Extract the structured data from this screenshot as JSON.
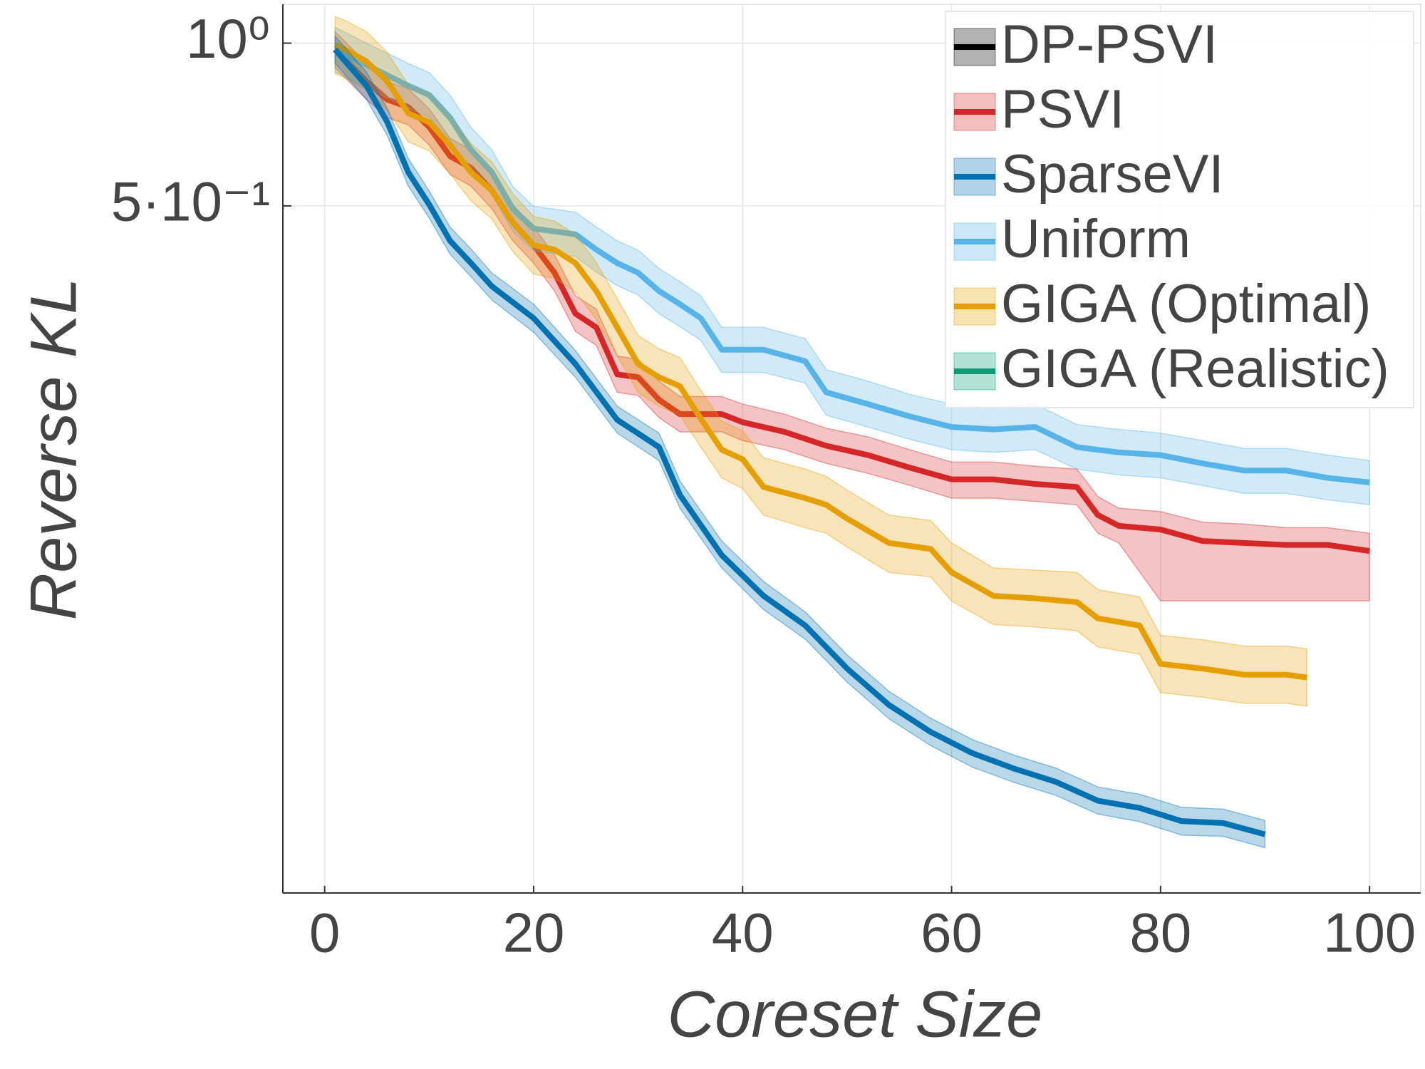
{
  "chart_data": {
    "type": "line",
    "xlabel": "Coreset Size",
    "ylabel": "Reverse KL",
    "log_y": true,
    "grid": true,
    "legend": "upper right",
    "xlim": [
      -4,
      104.9
    ],
    "xticks": [
      0,
      20,
      40,
      60,
      80,
      100
    ],
    "ylim": [
      0.0268,
      1.18
    ],
    "yticks": [
      {
        "value": 0.5,
        "label": "5·10⁻¹"
      },
      {
        "value": 1,
        "label": "10⁰"
      }
    ],
    "series": [
      {
        "name": "DP-PSVI",
        "color": "#000000"
      },
      {
        "name": "PSVI",
        "color": "#d62728",
        "x": [
          1,
          4,
          6,
          8,
          10,
          12,
          14,
          16,
          18,
          20,
          22,
          24,
          26,
          28,
          30,
          32,
          34,
          36,
          38,
          40,
          44,
          48,
          52,
          56,
          60,
          64,
          68,
          72,
          74,
          76,
          80,
          84,
          88,
          92,
          96,
          100
        ],
        "values": [
          0.973,
          0.85,
          0.786,
          0.762,
          0.7,
          0.618,
          0.588,
          0.534,
          0.466,
          0.423,
          0.376,
          0.316,
          0.298,
          0.244,
          0.241,
          0.219,
          0.206,
          0.206,
          0.206,
          0.199,
          0.191,
          0.18,
          0.173,
          0.164,
          0.156,
          0.156,
          0.153,
          0.151,
          0.134,
          0.128,
          0.126,
          0.12,
          0.119,
          0.118,
          0.118,
          0.115
        ],
        "lower": [
          0.901,
          0.787,
          0.728,
          0.706,
          0.648,
          0.572,
          0.544,
          0.494,
          0.431,
          0.392,
          0.348,
          0.293,
          0.276,
          0.226,
          0.223,
          0.203,
          0.191,
          0.191,
          0.191,
          0.184,
          0.177,
          0.167,
          0.16,
          0.152,
          0.144,
          0.144,
          0.142,
          0.14,
          0.124,
          0.119,
          0.093,
          0.093,
          0.093,
          0.093,
          0.093,
          0.093
        ],
        "upper": [
          1.05,
          0.918,
          0.849,
          0.823,
          0.756,
          0.667,
          0.635,
          0.577,
          0.503,
          0.457,
          0.406,
          0.341,
          0.322,
          0.264,
          0.26,
          0.237,
          0.222,
          0.222,
          0.222,
          0.215,
          0.206,
          0.194,
          0.187,
          0.177,
          0.168,
          0.168,
          0.165,
          0.163,
          0.145,
          0.138,
          0.136,
          0.13,
          0.129,
          0.127,
          0.127,
          0.124
        ]
      },
      {
        "name": "SparseVI",
        "color": "#0072b2",
        "x": [
          1,
          4,
          6,
          8,
          10,
          12,
          14,
          16,
          20,
          24,
          28,
          32,
          34,
          38,
          42,
          46,
          50,
          54,
          58,
          62,
          66,
          70,
          74,
          78,
          82,
          86,
          90
        ],
        "values": [
          0.973,
          0.834,
          0.714,
          0.577,
          0.503,
          0.431,
          0.392,
          0.355,
          0.31,
          0.255,
          0.201,
          0.179,
          0.146,
          0.113,
          0.095,
          0.0837,
          0.0697,
          0.0597,
          0.0532,
          0.0486,
          0.0455,
          0.043,
          0.0397,
          0.0385,
          0.0364,
          0.0361,
          0.0344
        ],
        "lower": [
          0.918,
          0.787,
          0.674,
          0.544,
          0.475,
          0.407,
          0.37,
          0.335,
          0.292,
          0.241,
          0.19,
          0.169,
          0.138,
          0.107,
          0.0896,
          0.079,
          0.0658,
          0.0563,
          0.0502,
          0.0458,
          0.0429,
          0.0406,
          0.0375,
          0.0363,
          0.0343,
          0.0341,
          0.0325
        ],
        "upper": [
          1.03,
          0.884,
          0.757,
          0.612,
          0.533,
          0.457,
          0.416,
          0.376,
          0.329,
          0.27,
          0.213,
          0.19,
          0.155,
          0.12,
          0.101,
          0.0887,
          0.0739,
          0.0633,
          0.0564,
          0.0515,
          0.0482,
          0.0456,
          0.0421,
          0.0408,
          0.0386,
          0.0383,
          0.0365
        ]
      },
      {
        "name": "Uniform",
        "color": "#56b4e9",
        "x": [
          1,
          4,
          8,
          10,
          12,
          14,
          16,
          18,
          20,
          24,
          26,
          28,
          30,
          32,
          34,
          36,
          38,
          42,
          46,
          48,
          52,
          56,
          60,
          64,
          68,
          72,
          76,
          80,
          84,
          88,
          92,
          96,
          100
        ],
        "values": [
          0.973,
          0.911,
          0.834,
          0.802,
          0.728,
          0.635,
          0.577,
          0.494,
          0.454,
          0.443,
          0.415,
          0.392,
          0.376,
          0.348,
          0.329,
          0.31,
          0.271,
          0.271,
          0.258,
          0.226,
          0.215,
          0.204,
          0.195,
          0.193,
          0.195,
          0.179,
          0.175,
          0.173,
          0.167,
          0.162,
          0.162,
          0.157,
          0.154
        ],
        "lower": [
          0.885,
          0.828,
          0.758,
          0.729,
          0.662,
          0.577,
          0.525,
          0.449,
          0.413,
          0.403,
          0.377,
          0.356,
          0.342,
          0.316,
          0.299,
          0.282,
          0.246,
          0.246,
          0.235,
          0.205,
          0.195,
          0.185,
          0.177,
          0.175,
          0.177,
          0.163,
          0.159,
          0.157,
          0.152,
          0.147,
          0.147,
          0.143,
          0.14
        ],
        "upper": [
          1.07,
          1.0,
          0.917,
          0.882,
          0.801,
          0.699,
          0.635,
          0.543,
          0.499,
          0.487,
          0.457,
          0.431,
          0.414,
          0.383,
          0.362,
          0.341,
          0.298,
          0.298,
          0.284,
          0.249,
          0.237,
          0.224,
          0.215,
          0.212,
          0.215,
          0.197,
          0.193,
          0.19,
          0.184,
          0.178,
          0.178,
          0.173,
          0.169
        ]
      },
      {
        "name": "GIGA (Optimal)",
        "color": "#e69f00",
        "x": [
          1,
          2,
          4,
          6,
          8,
          10,
          12,
          14,
          16,
          18,
          20,
          22,
          24,
          26,
          28,
          30,
          32,
          34,
          36,
          38,
          40,
          42,
          46,
          48,
          50,
          54,
          58,
          60,
          64,
          68,
          72,
          74,
          78,
          80,
          84,
          88,
          92,
          94
        ],
        "values": [
          0.992,
          0.973,
          0.925,
          0.85,
          0.742,
          0.714,
          0.648,
          0.577,
          0.534,
          0.466,
          0.423,
          0.415,
          0.392,
          0.348,
          0.298,
          0.255,
          0.241,
          0.232,
          0.202,
          0.177,
          0.17,
          0.151,
          0.144,
          0.14,
          0.132,
          0.119,
          0.116,
          0.105,
          0.095,
          0.094,
          0.0925,
          0.0863,
          0.0837,
          0.0711,
          0.0697,
          0.0679,
          0.0679,
          0.0671
        ],
        "lower": [
          0.878,
          0.861,
          0.819,
          0.752,
          0.657,
          0.632,
          0.573,
          0.511,
          0.473,
          0.412,
          0.374,
          0.367,
          0.347,
          0.308,
          0.264,
          0.226,
          0.213,
          0.205,
          0.179,
          0.157,
          0.15,
          0.134,
          0.127,
          0.124,
          0.117,
          0.105,
          0.103,
          0.0929,
          0.0841,
          0.0832,
          0.0819,
          0.0764,
          0.0741,
          0.0629,
          0.0617,
          0.0601,
          0.0601,
          0.0594
        ],
        "upper": [
          1.12,
          1.1,
          1.05,
          0.961,
          0.838,
          0.807,
          0.732,
          0.652,
          0.603,
          0.527,
          0.478,
          0.469,
          0.443,
          0.393,
          0.337,
          0.288,
          0.272,
          0.262,
          0.228,
          0.2,
          0.192,
          0.171,
          0.163,
          0.158,
          0.149,
          0.134,
          0.131,
          0.119,
          0.107,
          0.106,
          0.105,
          0.0975,
          0.0946,
          0.0803,
          0.0788,
          0.0767,
          0.0767,
          0.0758
        ]
      },
      {
        "name": "GIGA (Realistic)",
        "color": "#009e73"
      }
    ]
  }
}
